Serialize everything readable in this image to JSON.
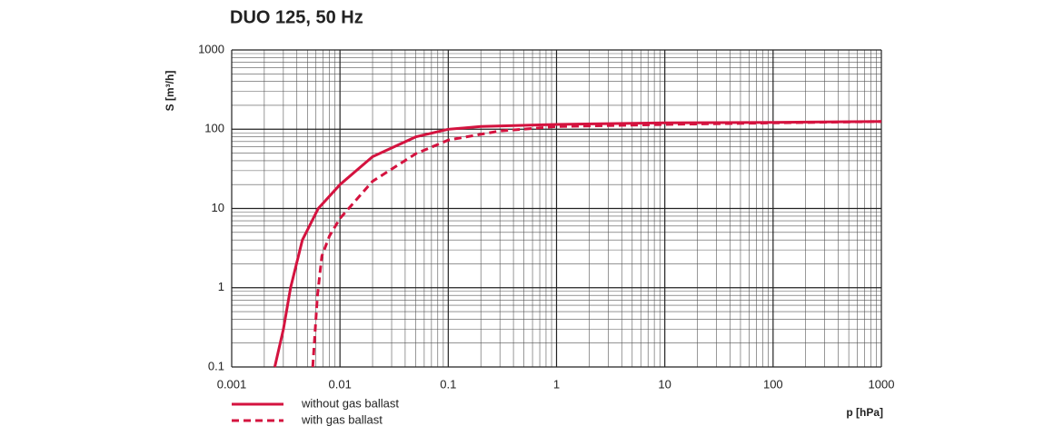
{
  "chart_data": {
    "type": "line",
    "title": "DUO 125, 50 Hz",
    "x_label": "p [hPa]",
    "y_label": "S [m³/h]",
    "x_log": true,
    "y_log": true,
    "grid": true,
    "minor_grid": true,
    "xlim": [
      0.001,
      1000
    ],
    "ylim": [
      0.1,
      1000
    ],
    "xticks": [
      0.001,
      0.01,
      0.1,
      1,
      10,
      100,
      1000
    ],
    "yticks": [
      0.1,
      1,
      10,
      100,
      1000
    ],
    "legend": "bottom-left",
    "series": [
      {
        "name": "without gas ballast",
        "color": "#d4133f",
        "dash": false,
        "x": [
          0.0025,
          0.003,
          0.0035,
          0.0045,
          0.0063,
          0.01,
          0.02,
          0.05,
          0.1,
          0.2,
          1,
          10,
          100,
          1000
        ],
        "values": [
          0.1,
          0.3,
          1,
          4,
          10,
          20,
          45,
          80,
          100,
          108,
          115,
          120,
          122,
          125
        ]
      },
      {
        "name": "with gas ballast",
        "color": "#d4133f",
        "dash": true,
        "x": [
          0.0056,
          0.0062,
          0.0068,
          0.008,
          0.01,
          0.02,
          0.05,
          0.1,
          0.3,
          1,
          10,
          100,
          1000
        ],
        "values": [
          0.1,
          0.8,
          2.5,
          4.5,
          7.5,
          22,
          49,
          73,
          95,
          108,
          115,
          120,
          125
        ]
      }
    ]
  }
}
